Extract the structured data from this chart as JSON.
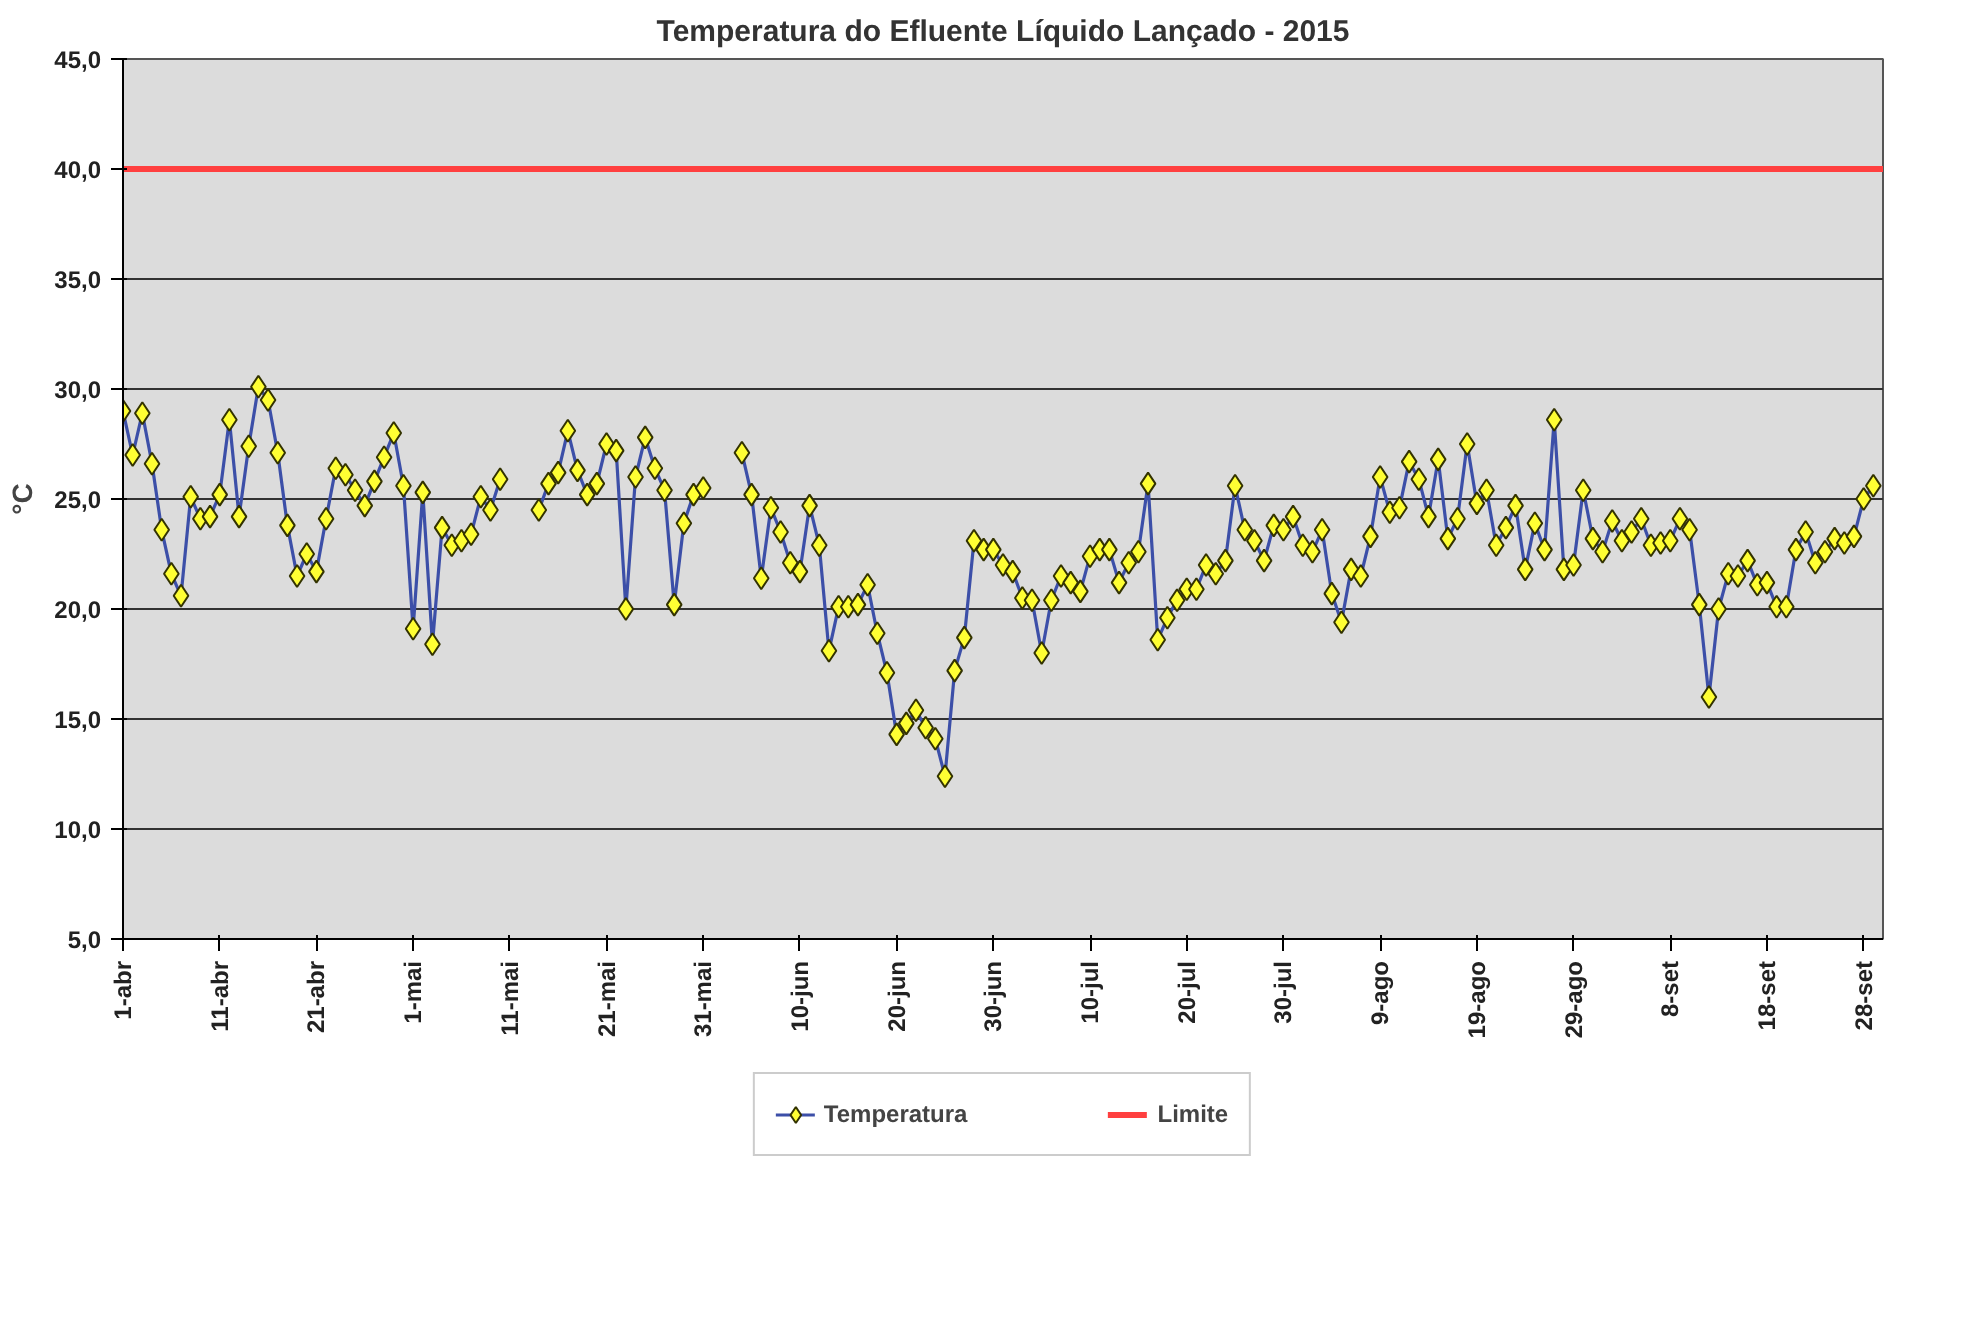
{
  "chart_data": {
    "type": "line",
    "title": "Temperatura do Efluente Líquido Lançado - 2015",
    "ylabel": "°C",
    "xlim": [
      "2015-04-01",
      "2015-09-30"
    ],
    "xticks": [
      {
        "value": "2015-04-01",
        "label": "1-abr"
      },
      {
        "value": "2015-04-11",
        "label": "11-abr"
      },
      {
        "value": "2015-04-21",
        "label": "21-abr"
      },
      {
        "value": "2015-05-01",
        "label": "1-mai"
      },
      {
        "value": "2015-05-11",
        "label": "11-mai"
      },
      {
        "value": "2015-05-21",
        "label": "21-mai"
      },
      {
        "value": "2015-05-31",
        "label": "31-mai"
      },
      {
        "value": "2015-06-10",
        "label": "10-jun"
      },
      {
        "value": "2015-06-20",
        "label": "20-jun"
      },
      {
        "value": "2015-06-30",
        "label": "30-jun"
      },
      {
        "value": "2015-07-10",
        "label": "10-jul"
      },
      {
        "value": "2015-07-20",
        "label": "20-jul"
      },
      {
        "value": "2015-07-30",
        "label": "30-jul"
      },
      {
        "value": "2015-08-09",
        "label": "9-ago"
      },
      {
        "value": "2015-08-19",
        "label": "19-ago"
      },
      {
        "value": "2015-08-29",
        "label": "29-ago"
      },
      {
        "value": "2015-09-08",
        "label": "8-set"
      },
      {
        "value": "2015-09-18",
        "label": "18-set"
      },
      {
        "value": "2015-09-28",
        "label": "28-set"
      }
    ],
    "ylim": [
      5,
      45
    ],
    "yticks": [
      {
        "value": 5,
        "label": "5,0"
      },
      {
        "value": 10,
        "label": "10,0"
      },
      {
        "value": 15,
        "label": "15,0"
      },
      {
        "value": 20,
        "label": "20,0"
      },
      {
        "value": 25,
        "label": "25,0"
      },
      {
        "value": 30,
        "label": "30,0"
      },
      {
        "value": 35,
        "label": "35,0"
      },
      {
        "value": 40,
        "label": "40,0"
      },
      {
        "value": 45,
        "label": "45,0"
      }
    ],
    "grid": "y",
    "legend": "bottom",
    "marker": "diamond",
    "line_style": "solid",
    "series": [
      {
        "name": "Temperatura",
        "color": "#3c4fa8",
        "x": [
          "2015-04-01",
          "2015-04-02",
          "2015-04-03",
          "2015-04-04",
          "2015-04-05",
          "2015-04-06",
          "2015-04-07",
          "2015-04-08",
          "2015-04-09",
          "2015-04-10",
          "2015-04-11",
          "2015-04-12",
          "2015-04-13",
          "2015-04-14",
          "2015-04-15",
          "2015-04-16",
          "2015-04-17",
          "2015-04-18",
          "2015-04-19",
          "2015-04-20",
          "2015-04-21",
          "2015-04-22",
          "2015-04-23",
          "2015-04-24",
          "2015-04-25",
          "2015-04-26",
          "2015-04-27",
          "2015-04-28",
          "2015-04-29",
          "2015-04-30",
          "2015-05-01",
          "2015-05-02",
          "2015-05-03",
          "2015-05-04",
          "2015-05-05",
          "2015-05-06",
          "2015-05-07",
          "2015-05-08",
          "2015-05-09",
          "2015-05-10",
          "2015-05-11",
          "2015-05-12",
          "2015-05-13",
          "2015-05-14",
          "2015-05-15",
          "2015-05-16",
          "2015-05-17",
          "2015-05-18",
          "2015-05-19",
          "2015-05-20",
          "2015-05-21",
          "2015-05-22",
          "2015-05-23",
          "2015-05-24",
          "2015-05-25",
          "2015-05-26",
          "2015-05-27",
          "2015-05-28",
          "2015-05-29",
          "2015-05-30",
          "2015-05-31",
          "2015-06-01",
          "2015-06-02",
          "2015-06-03",
          "2015-06-04",
          "2015-06-05",
          "2015-06-06",
          "2015-06-07",
          "2015-06-08",
          "2015-06-09",
          "2015-06-10",
          "2015-06-11",
          "2015-06-12",
          "2015-06-13",
          "2015-06-14",
          "2015-06-15",
          "2015-06-16",
          "2015-06-17",
          "2015-06-18",
          "2015-06-19",
          "2015-06-20",
          "2015-06-21",
          "2015-06-22",
          "2015-06-23",
          "2015-06-24",
          "2015-06-25",
          "2015-06-26",
          "2015-06-27",
          "2015-06-28",
          "2015-06-29",
          "2015-06-30",
          "2015-07-01",
          "2015-07-02",
          "2015-07-03",
          "2015-07-04",
          "2015-07-05",
          "2015-07-06",
          "2015-07-07",
          "2015-07-08",
          "2015-07-09",
          "2015-07-10",
          "2015-07-11",
          "2015-07-12",
          "2015-07-13",
          "2015-07-14",
          "2015-07-15",
          "2015-07-16",
          "2015-07-17",
          "2015-07-18",
          "2015-07-19",
          "2015-07-20",
          "2015-07-21",
          "2015-07-22",
          "2015-07-23",
          "2015-07-24",
          "2015-07-25",
          "2015-07-26",
          "2015-07-27",
          "2015-07-28",
          "2015-07-29",
          "2015-07-30",
          "2015-07-31",
          "2015-08-01",
          "2015-08-02",
          "2015-08-03",
          "2015-08-04",
          "2015-08-05",
          "2015-08-06",
          "2015-08-07",
          "2015-08-08",
          "2015-08-09",
          "2015-08-10",
          "2015-08-11",
          "2015-08-12",
          "2015-08-13",
          "2015-08-14",
          "2015-08-15",
          "2015-08-16",
          "2015-08-17",
          "2015-08-18",
          "2015-08-19",
          "2015-08-20",
          "2015-08-21",
          "2015-08-22",
          "2015-08-23",
          "2015-08-24",
          "2015-08-25",
          "2015-08-26",
          "2015-08-27",
          "2015-08-28",
          "2015-08-29",
          "2015-08-30",
          "2015-08-31",
          "2015-09-01",
          "2015-09-02",
          "2015-09-03",
          "2015-09-04",
          "2015-09-05",
          "2015-09-06",
          "2015-09-07",
          "2015-09-08",
          "2015-09-09",
          "2015-09-10",
          "2015-09-11",
          "2015-09-12",
          "2015-09-13",
          "2015-09-14",
          "2015-09-15",
          "2015-09-16",
          "2015-09-17",
          "2015-09-18",
          "2015-09-19",
          "2015-09-20",
          "2015-09-21",
          "2015-09-22",
          "2015-09-23",
          "2015-09-24",
          "2015-09-25",
          "2015-09-26",
          "2015-09-27",
          "2015-09-28",
          "2015-09-29"
        ],
        "values": [
          29.0,
          27.0,
          28.9,
          26.6,
          23.6,
          21.6,
          20.6,
          25.1,
          24.1,
          24.2,
          25.2,
          28.6,
          24.2,
          27.4,
          30.1,
          29.5,
          27.1,
          23.8,
          21.5,
          22.5,
          21.7,
          24.1,
          26.4,
          26.1,
          25.4,
          24.7,
          25.8,
          26.9,
          28.0,
          25.6,
          19.1,
          25.3,
          18.4,
          23.7,
          22.9,
          23.1,
          23.4,
          25.1,
          24.5,
          25.9,
          null,
          null,
          null,
          24.5,
          25.7,
          26.2,
          28.1,
          26.3,
          25.2,
          25.7,
          27.5,
          27.2,
          20.0,
          26.0,
          27.8,
          26.4,
          25.4,
          20.2,
          23.9,
          25.2,
          25.5,
          null,
          null,
          null,
          27.1,
          25.2,
          21.4,
          24.6,
          23.5,
          22.1,
          21.7,
          24.7,
          22.9,
          18.1,
          20.1,
          20.1,
          20.2,
          21.1,
          18.9,
          17.1,
          14.3,
          14.8,
          15.4,
          14.6,
          14.1,
          12.4,
          17.2,
          18.7,
          23.1,
          22.7,
          22.7,
          22.0,
          21.7,
          20.5,
          20.4,
          18.0,
          20.4,
          21.5,
          21.2,
          20.8,
          22.4,
          22.7,
          22.7,
          21.2,
          22.1,
          22.6,
          25.7,
          18.6,
          19.6,
          20.4,
          20.9,
          20.9,
          22.0,
          21.6,
          22.2,
          25.6,
          23.6,
          23.1,
          22.2,
          23.8,
          23.6,
          24.2,
          22.9,
          22.6,
          23.6,
          20.7,
          19.4,
          21.8,
          21.5,
          23.3,
          26.0,
          24.4,
          24.6,
          26.7,
          25.9,
          24.2,
          26.8,
          23.2,
          24.1,
          27.5,
          24.8,
          25.4,
          22.9,
          23.7,
          24.7,
          21.8,
          23.9,
          22.7,
          28.6,
          21.8,
          22.0,
          25.4,
          23.2,
          22.6,
          24.0,
          23.1,
          23.5,
          24.1,
          22.9,
          23.0,
          23.1,
          24.1,
          23.6,
          20.2,
          16.0,
          20.0,
          21.6,
          21.5,
          22.2,
          21.1,
          21.2,
          20.1,
          20.1,
          22.7,
          23.5,
          22.1,
          22.6,
          23.2,
          23.0,
          23.3,
          25.0,
          25.6
        ]
      },
      {
        "name": "Limite",
        "color": "#ff4040",
        "marker": "none",
        "x": [
          "2015-04-01",
          "2015-09-30"
        ],
        "values": [
          40,
          40
        ]
      }
    ]
  }
}
